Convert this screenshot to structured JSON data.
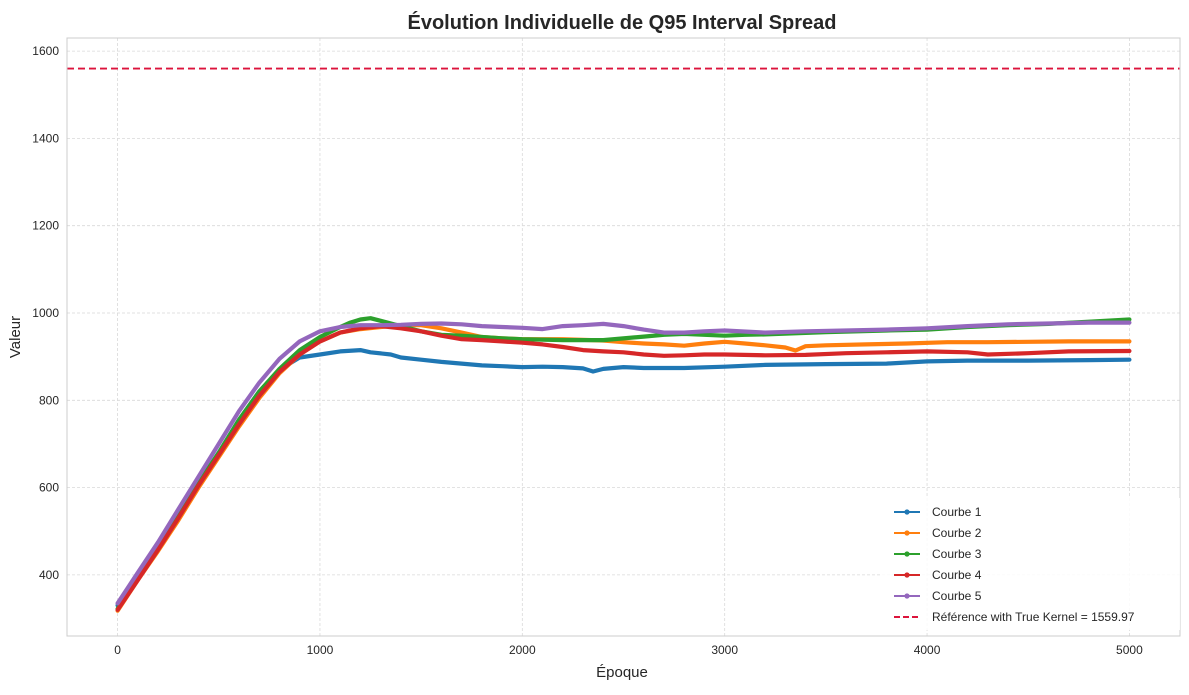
{
  "chart_data": {
    "type": "line",
    "title": "Évolution Individuelle de Q95 Interval Spread",
    "xlabel": "Époque",
    "ylabel": "Valeur",
    "xlim": [
      -250,
      5250
    ],
    "ylim": [
      260,
      1630
    ],
    "xticks": [
      0,
      1000,
      2000,
      3000,
      4000,
      5000
    ],
    "yticks": [
      400,
      600,
      800,
      1000,
      1200,
      1400,
      1600
    ],
    "grid": true,
    "legend_position": "lower-right",
    "series": [
      {
        "name": "Courbe 1",
        "color": "#1f77b4",
        "points": [
          [
            0,
            330
          ],
          [
            100,
            395
          ],
          [
            200,
            460
          ],
          [
            300,
            535
          ],
          [
            400,
            610
          ],
          [
            500,
            680
          ],
          [
            600,
            755
          ],
          [
            700,
            820
          ],
          [
            800,
            870
          ],
          [
            900,
            898
          ],
          [
            1000,
            905
          ],
          [
            1100,
            912
          ],
          [
            1200,
            915
          ],
          [
            1250,
            910
          ],
          [
            1350,
            905
          ],
          [
            1400,
            898
          ],
          [
            1500,
            893
          ],
          [
            1600,
            888
          ],
          [
            1700,
            884
          ],
          [
            1800,
            880
          ],
          [
            1900,
            878
          ],
          [
            2000,
            876
          ],
          [
            2100,
            877
          ],
          [
            2200,
            876
          ],
          [
            2300,
            873
          ],
          [
            2350,
            866
          ],
          [
            2400,
            872
          ],
          [
            2500,
            876
          ],
          [
            2600,
            874
          ],
          [
            2800,
            874
          ],
          [
            3000,
            877
          ],
          [
            3200,
            881
          ],
          [
            3500,
            883
          ],
          [
            3800,
            884
          ],
          [
            4000,
            889
          ],
          [
            4200,
            891
          ],
          [
            4500,
            891
          ],
          [
            4800,
            892
          ],
          [
            5000,
            893
          ]
        ]
      },
      {
        "name": "Courbe 2",
        "color": "#ff7f0e",
        "points": [
          [
            0,
            318
          ],
          [
            100,
            388
          ],
          [
            200,
            455
          ],
          [
            300,
            525
          ],
          [
            400,
            600
          ],
          [
            500,
            670
          ],
          [
            600,
            740
          ],
          [
            700,
            805
          ],
          [
            800,
            862
          ],
          [
            900,
            905
          ],
          [
            1000,
            935
          ],
          [
            1100,
            955
          ],
          [
            1200,
            963
          ],
          [
            1300,
            968
          ],
          [
            1400,
            972
          ],
          [
            1500,
            972
          ],
          [
            1600,
            965
          ],
          [
            1700,
            955
          ],
          [
            1800,
            945
          ],
          [
            1900,
            942
          ],
          [
            2000,
            940
          ],
          [
            2200,
            940
          ],
          [
            2400,
            937
          ],
          [
            2500,
            933
          ],
          [
            2600,
            930
          ],
          [
            2700,
            928
          ],
          [
            2800,
            925
          ],
          [
            2900,
            930
          ],
          [
            3000,
            934
          ],
          [
            3100,
            930
          ],
          [
            3200,
            926
          ],
          [
            3300,
            921
          ],
          [
            3350,
            914
          ],
          [
            3400,
            924
          ],
          [
            3500,
            926
          ],
          [
            3700,
            928
          ],
          [
            3900,
            930
          ],
          [
            4100,
            933
          ],
          [
            4300,
            933
          ],
          [
            4500,
            934
          ],
          [
            4700,
            935
          ],
          [
            5000,
            935
          ]
        ]
      },
      {
        "name": "Courbe 3",
        "color": "#2ca02c",
        "points": [
          [
            0,
            322
          ],
          [
            100,
            393
          ],
          [
            200,
            462
          ],
          [
            300,
            535
          ],
          [
            400,
            610
          ],
          [
            500,
            680
          ],
          [
            600,
            755
          ],
          [
            700,
            820
          ],
          [
            800,
            872
          ],
          [
            900,
            915
          ],
          [
            1000,
            945
          ],
          [
            1100,
            968
          ],
          [
            1150,
            978
          ],
          [
            1200,
            985
          ],
          [
            1250,
            988
          ],
          [
            1300,
            982
          ],
          [
            1400,
            970
          ],
          [
            1500,
            958
          ],
          [
            1600,
            950
          ],
          [
            1700,
            948
          ],
          [
            1800,
            945
          ],
          [
            1900,
            942
          ],
          [
            2000,
            940
          ],
          [
            2200,
            938
          ],
          [
            2400,
            938
          ],
          [
            2600,
            946
          ],
          [
            2700,
            950
          ],
          [
            2800,
            952
          ],
          [
            2900,
            950
          ],
          [
            3000,
            948
          ],
          [
            3100,
            950
          ],
          [
            3200,
            951
          ],
          [
            3500,
            956
          ],
          [
            3800,
            960
          ],
          [
            4000,
            962
          ],
          [
            4200,
            968
          ],
          [
            4400,
            972
          ],
          [
            4600,
            975
          ],
          [
            4800,
            980
          ],
          [
            5000,
            985
          ]
        ]
      },
      {
        "name": "Courbe 4",
        "color": "#d62728",
        "points": [
          [
            0,
            320
          ],
          [
            100,
            388
          ],
          [
            200,
            458
          ],
          [
            300,
            530
          ],
          [
            400,
            605
          ],
          [
            500,
            675
          ],
          [
            600,
            745
          ],
          [
            700,
            810
          ],
          [
            800,
            865
          ],
          [
            900,
            905
          ],
          [
            1000,
            935
          ],
          [
            1100,
            955
          ],
          [
            1200,
            965
          ],
          [
            1300,
            970
          ],
          [
            1400,
            965
          ],
          [
            1500,
            958
          ],
          [
            1600,
            948
          ],
          [
            1700,
            940
          ],
          [
            1800,
            938
          ],
          [
            1900,
            935
          ],
          [
            2000,
            932
          ],
          [
            2100,
            928
          ],
          [
            2200,
            922
          ],
          [
            2300,
            915
          ],
          [
            2400,
            912
          ],
          [
            2500,
            910
          ],
          [
            2600,
            905
          ],
          [
            2700,
            902
          ],
          [
            2800,
            903
          ],
          [
            2900,
            905
          ],
          [
            3000,
            905
          ],
          [
            3200,
            903
          ],
          [
            3400,
            904
          ],
          [
            3600,
            908
          ],
          [
            3800,
            910
          ],
          [
            4000,
            912
          ],
          [
            4200,
            910
          ],
          [
            4300,
            905
          ],
          [
            4500,
            908
          ],
          [
            4700,
            912
          ],
          [
            5000,
            913
          ]
        ]
      },
      {
        "name": "Courbe 5",
        "color": "#9467bd",
        "points": [
          [
            0,
            335
          ],
          [
            100,
            405
          ],
          [
            200,
            475
          ],
          [
            300,
            550
          ],
          [
            400,
            625
          ],
          [
            500,
            700
          ],
          [
            600,
            775
          ],
          [
            700,
            840
          ],
          [
            800,
            895
          ],
          [
            900,
            935
          ],
          [
            1000,
            958
          ],
          [
            1100,
            968
          ],
          [
            1200,
            972
          ],
          [
            1300,
            972
          ],
          [
            1400,
            973
          ],
          [
            1500,
            975
          ],
          [
            1600,
            976
          ],
          [
            1700,
            974
          ],
          [
            1800,
            970
          ],
          [
            1900,
            968
          ],
          [
            2000,
            966
          ],
          [
            2100,
            963
          ],
          [
            2200,
            970
          ],
          [
            2300,
            972
          ],
          [
            2400,
            975
          ],
          [
            2500,
            970
          ],
          [
            2600,
            962
          ],
          [
            2700,
            955
          ],
          [
            2800,
            955
          ],
          [
            2900,
            958
          ],
          [
            3000,
            960
          ],
          [
            3200,
            955
          ],
          [
            3400,
            958
          ],
          [
            3600,
            960
          ],
          [
            3800,
            962
          ],
          [
            4000,
            965
          ],
          [
            4200,
            970
          ],
          [
            4400,
            974
          ],
          [
            4600,
            976
          ],
          [
            4800,
            978
          ],
          [
            5000,
            978
          ]
        ]
      }
    ],
    "reference_line": {
      "name": "Référence with True Kernel = 1559.97",
      "value": 1559.97,
      "color": "#dc143c",
      "style": "dashed"
    }
  }
}
